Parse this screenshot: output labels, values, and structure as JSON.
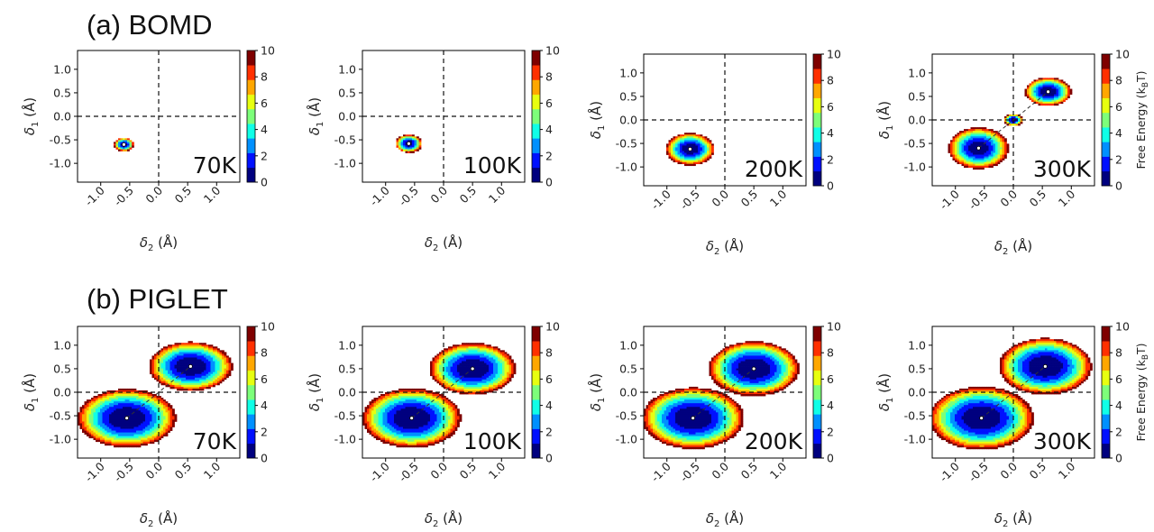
{
  "figure": {
    "rows": [
      {
        "title": "(a) BOMD"
      },
      {
        "title": "(b) PIGLET"
      }
    ],
    "colorbar_label": "Free Energy (kBT)",
    "colorbar_label_parts": {
      "main": "Free Energy (k",
      "sub": "B",
      "tail": "T)"
    },
    "axis_labels": {
      "x": {
        "symbol": "δ",
        "sub": "2",
        "unit": " (Å)"
      },
      "y": {
        "symbol": "δ",
        "sub": "1",
        "unit": " (Å)"
      }
    },
    "palette": [
      "#00007f",
      "#0010ff",
      "#0090ff",
      "#10ffe7",
      "#7dff7a",
      "#e7ff10",
      "#ffa700",
      "#ff3000",
      "#7f0000"
    ]
  },
  "chart_data": [
    {
      "type": "heatmap",
      "panel": "a-70K",
      "label": "70K",
      "xlabel": "δ2 (Å)",
      "ylabel": "δ1 (Å)",
      "xlim": [
        -1.4,
        1.4
      ],
      "ylim": [
        -1.4,
        1.4
      ],
      "xticks": [
        "-1.0",
        "-0.5",
        "0.0",
        "0.5",
        "1.0"
      ],
      "yticks": [
        "1.0",
        "0.5",
        "0.0",
        "-0.5",
        "-1.0"
      ],
      "colorbar": {
        "min": 0,
        "max": 10,
        "ticks": [
          "10",
          "8",
          "6",
          "4",
          "2",
          "0"
        ],
        "show_label": false
      },
      "minima": [
        {
          "x": -0.6,
          "y": -0.6,
          "rx": 0.17,
          "ry": 0.14,
          "fmax": 10,
          "shape": 2.0,
          "label": ""
        }
      ]
    },
    {
      "type": "heatmap",
      "panel": "a-100K",
      "label": "100K",
      "xlabel": "δ2 (Å)",
      "ylabel": "δ1 (Å)",
      "xlim": [
        -1.4,
        1.4
      ],
      "ylim": [
        -1.4,
        1.4
      ],
      "xticks": [
        "-1.0",
        "-0.5",
        "0.0",
        "0.5",
        "1.0"
      ],
      "yticks": [
        "1.0",
        "0.5",
        "0.0",
        "-0.5",
        "-1.0"
      ],
      "colorbar": {
        "min": 0,
        "max": 10,
        "ticks": [
          "10",
          "8",
          "6",
          "4",
          "2",
          "0"
        ],
        "show_label": false
      },
      "minima": [
        {
          "x": -0.6,
          "y": -0.58,
          "rx": 0.23,
          "ry": 0.19,
          "fmax": 10,
          "shape": 2.0,
          "label": ""
        }
      ]
    },
    {
      "type": "heatmap",
      "panel": "a-200K",
      "label": "200K",
      "xlabel": "δ2 (Å)",
      "ylabel": "δ1 (Å)",
      "xlim": [
        -1.4,
        1.4
      ],
      "ylim": [
        -1.4,
        1.4
      ],
      "xticks": [
        "-1.0",
        "-0.5",
        "0.0",
        "0.5",
        "1.0"
      ],
      "yticks": [
        "1.0",
        "0.5",
        "0.0",
        "-0.5",
        "-1.0"
      ],
      "colorbar": {
        "min": 0,
        "max": 10,
        "ticks": [
          "10",
          "8",
          "6",
          "4",
          "2",
          "0"
        ],
        "show_label": false
      },
      "minima": [
        {
          "x": -0.6,
          "y": -0.62,
          "rx": 0.42,
          "ry": 0.34,
          "fmax": 10,
          "shape": 2.0,
          "label": ""
        }
      ]
    },
    {
      "type": "heatmap",
      "panel": "a-300K",
      "label": "300K",
      "xlabel": "δ2 (Å)",
      "ylabel": "δ1 (Å)",
      "xlim": [
        -1.4,
        1.4
      ],
      "ylim": [
        -1.4,
        1.4
      ],
      "xticks": [
        "-1.0",
        "-0.5",
        "0.0",
        "0.5",
        "1.0"
      ],
      "yticks": [
        "1.0",
        "0.5",
        "0.0",
        "-0.5",
        "-1.0"
      ],
      "colorbar": {
        "min": 0,
        "max": 10,
        "ticks": [
          "10",
          "8",
          "6",
          "4",
          "2",
          "0"
        ],
        "show_label": true
      },
      "minima": [
        {
          "x": -0.6,
          "y": -0.6,
          "rx": 0.52,
          "ry": 0.44,
          "fmax": 10,
          "shape": 2.0,
          "label": ""
        },
        {
          "x": 0.6,
          "y": 0.6,
          "rx": 0.4,
          "ry": 0.3,
          "fmax": 10,
          "shape": 2.0,
          "label": ""
        },
        {
          "x": 0.0,
          "y": 0.0,
          "rx": 0.16,
          "ry": 0.13,
          "fmax": 10,
          "shape": 2.0,
          "label": ""
        }
      ],
      "path": [
        [
          -0.6,
          -0.6
        ],
        [
          0.6,
          0.6
        ]
      ]
    },
    {
      "type": "heatmap",
      "panel": "b-70K",
      "label": "70K",
      "xlabel": "δ2 (Å)",
      "ylabel": "δ1 (Å)",
      "xlim": [
        -1.4,
        1.4
      ],
      "ylim": [
        -1.4,
        1.4
      ],
      "xticks": [
        "-1.0",
        "-0.5",
        "0.0",
        "0.5",
        "1.0"
      ],
      "yticks": [
        "1.0",
        "0.5",
        "0.0",
        "-0.5",
        "-1.0"
      ],
      "colorbar": {
        "min": 0,
        "max": 10,
        "ticks": [
          "10",
          "8",
          "6",
          "4",
          "2",
          "0"
        ],
        "show_label": false
      },
      "minima": [
        {
          "x": -0.55,
          "y": -0.55,
          "rx": 0.85,
          "ry": 0.62,
          "fmax": 10,
          "shape": 2.2,
          "label": ""
        },
        {
          "x": 0.55,
          "y": 0.55,
          "rx": 0.72,
          "ry": 0.52,
          "fmax": 10,
          "shape": 2.2,
          "label": ""
        }
      ],
      "path": [
        [
          -0.55,
          -0.55
        ],
        [
          0.55,
          0.55
        ]
      ]
    },
    {
      "type": "heatmap",
      "panel": "b-100K",
      "label": "100K",
      "xlabel": "δ2 (Å)",
      "ylabel": "δ1 (Å)",
      "xlim": [
        -1.4,
        1.4
      ],
      "ylim": [
        -1.4,
        1.4
      ],
      "xticks": [
        "-1.0",
        "-0.5",
        "0.0",
        "0.5",
        "1.0"
      ],
      "yticks": [
        "1.0",
        "0.5",
        "0.0",
        "-0.5",
        "-1.0"
      ],
      "colorbar": {
        "min": 0,
        "max": 10,
        "ticks": [
          "10",
          "8",
          "6",
          "4",
          "2",
          "0"
        ],
        "show_label": false
      },
      "minima": [
        {
          "x": -0.55,
          "y": -0.55,
          "rx": 0.85,
          "ry": 0.63,
          "fmax": 10,
          "shape": 2.2,
          "label": ""
        },
        {
          "x": 0.5,
          "y": 0.5,
          "rx": 0.74,
          "ry": 0.55,
          "fmax": 10,
          "shape": 2.2,
          "label": ""
        }
      ],
      "path": [
        [
          -0.55,
          -0.55
        ],
        [
          0.5,
          0.5
        ]
      ]
    },
    {
      "type": "heatmap",
      "panel": "b-200K",
      "label": "200K",
      "xlabel": "δ2 (Å)",
      "ylabel": "δ1 (Å)",
      "xlim": [
        -1.4,
        1.4
      ],
      "ylim": [
        -1.4,
        1.4
      ],
      "xticks": [
        "-1.0",
        "-0.5",
        "0.0",
        "0.5",
        "1.0"
      ],
      "yticks": [
        "1.0",
        "0.5",
        "0.0",
        "-0.5",
        "-1.0"
      ],
      "colorbar": {
        "min": 0,
        "max": 10,
        "ticks": [
          "10",
          "8",
          "6",
          "4",
          "2",
          "0"
        ],
        "show_label": false
      },
      "minima": [
        {
          "x": -0.55,
          "y": -0.55,
          "rx": 0.88,
          "ry": 0.65,
          "fmax": 10,
          "shape": 2.2,
          "label": ""
        },
        {
          "x": 0.5,
          "y": 0.5,
          "rx": 0.78,
          "ry": 0.58,
          "fmax": 10,
          "shape": 2.2,
          "label": ""
        }
      ],
      "path": [
        [
          -0.55,
          -0.55
        ],
        [
          0.5,
          0.5
        ]
      ]
    },
    {
      "type": "heatmap",
      "panel": "b-300K",
      "label": "300K",
      "xlabel": "δ2 (Å)",
      "ylabel": "δ1 (Å)",
      "xlim": [
        -1.4,
        1.4
      ],
      "ylim": [
        -1.4,
        1.4
      ],
      "xticks": [
        "-1.0",
        "-0.5",
        "0.0",
        "0.5",
        "1.0"
      ],
      "yticks": [
        "1.0",
        "0.5",
        "0.0",
        "-0.5",
        "-1.0"
      ],
      "colorbar": {
        "min": 0,
        "max": 10,
        "ticks": [
          "10",
          "8",
          "6",
          "4",
          "2",
          "0"
        ],
        "show_label": true
      },
      "minima": [
        {
          "x": -0.55,
          "y": -0.55,
          "rx": 0.9,
          "ry": 0.67,
          "fmax": 10,
          "shape": 2.2,
          "label": ""
        },
        {
          "x": 0.55,
          "y": 0.55,
          "rx": 0.8,
          "ry": 0.6,
          "fmax": 10,
          "shape": 2.2,
          "label": ""
        }
      ],
      "path": [
        [
          -0.55,
          -0.55
        ],
        [
          0.55,
          0.55
        ]
      ]
    }
  ]
}
